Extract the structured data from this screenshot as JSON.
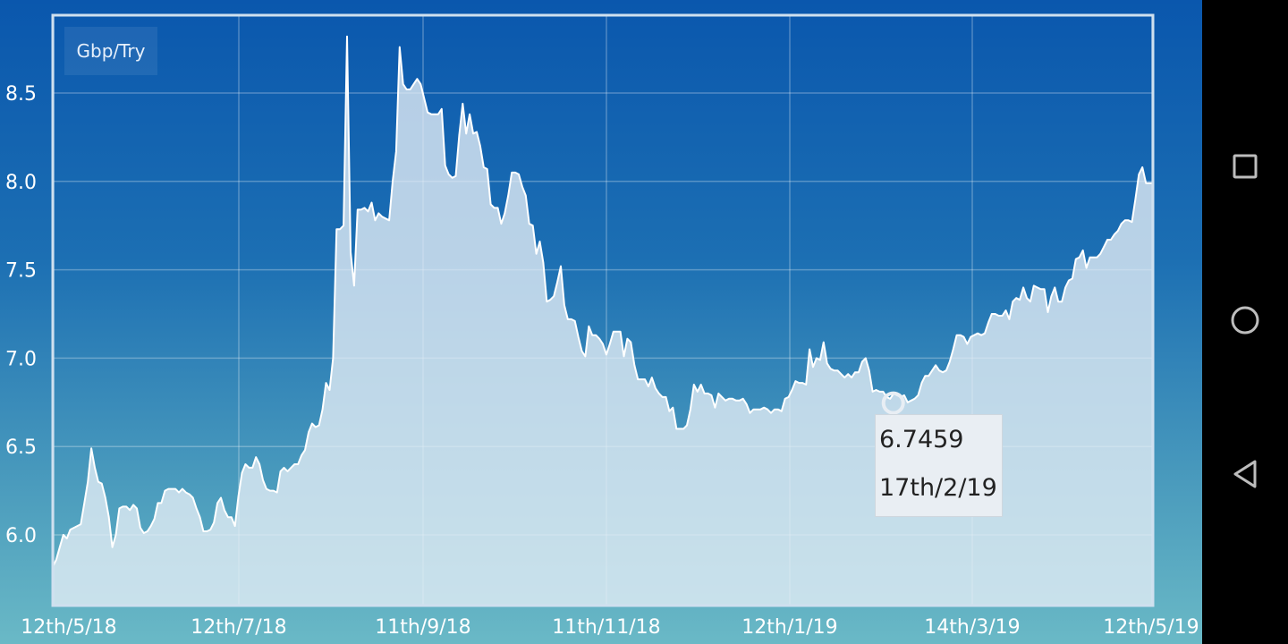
{
  "chart_data": {
    "type": "area",
    "title": "Gbp/Try",
    "xlabel": "",
    "ylabel": "",
    "y_ticks": [
      "6.0",
      "6.5",
      "7.0",
      "7.5",
      "8.0",
      "8.5"
    ],
    "ylim": [
      5.6,
      8.9
    ],
    "x_ticks": [
      "12th/5/18",
      "12th/7/18",
      "11th/9/18",
      "11th/11/18",
      "12th/1/19",
      "14th/3/19",
      "12th/5/19"
    ],
    "grid": true,
    "series": [
      {
        "name": "Gbp/Try",
        "values": [
          5.82,
          5.86,
          5.93,
          6.0,
          5.98,
          6.03,
          6.04,
          6.05,
          6.06,
          6.18,
          6.3,
          6.49,
          6.38,
          6.3,
          6.29,
          6.21,
          6.1,
          5.93,
          6.0,
          6.15,
          6.16,
          6.16,
          6.14,
          6.17,
          6.15,
          6.04,
          6.01,
          6.02,
          6.05,
          6.09,
          6.18,
          6.18,
          6.25,
          6.26,
          6.26,
          6.26,
          6.24,
          6.26,
          6.24,
          6.23,
          6.21,
          6.15,
          6.1,
          6.02,
          6.02,
          6.03,
          6.07,
          6.18,
          6.21,
          6.14,
          6.1,
          6.1,
          6.05,
          6.22,
          6.35,
          6.4,
          6.38,
          6.38,
          6.44,
          6.4,
          6.31,
          6.26,
          6.25,
          6.25,
          6.24,
          6.36,
          6.38,
          6.36,
          6.38,
          6.4,
          6.4,
          6.45,
          6.48,
          6.58,
          6.63,
          6.61,
          6.62,
          6.71,
          6.86,
          6.82,
          7.0,
          7.73,
          7.73,
          7.75,
          8.82,
          7.6,
          7.41,
          7.84,
          7.84,
          7.85,
          7.83,
          7.88,
          7.78,
          7.82,
          7.8,
          7.79,
          7.78,
          8.0,
          8.17,
          8.76,
          8.55,
          8.52,
          8.52,
          8.55,
          8.58,
          8.55,
          8.47,
          8.39,
          8.38,
          8.38,
          8.38,
          8.41,
          8.09,
          8.04,
          8.02,
          8.03,
          8.26,
          8.44,
          8.27,
          8.38,
          8.27,
          8.28,
          8.2,
          8.08,
          8.07,
          7.87,
          7.85,
          7.85,
          7.76,
          7.82,
          7.92,
          8.05,
          8.05,
          8.04,
          7.97,
          7.92,
          7.76,
          7.75,
          7.59,
          7.66,
          7.54,
          7.32,
          7.33,
          7.35,
          7.43,
          7.52,
          7.3,
          7.22,
          7.22,
          7.21,
          7.12,
          7.04,
          7.01,
          7.18,
          7.13,
          7.13,
          7.11,
          7.08,
          7.02,
          7.08,
          7.15,
          7.15,
          7.15,
          7.01,
          7.11,
          7.09,
          6.96,
          6.88,
          6.88,
          6.88,
          6.84,
          6.89,
          6.83,
          6.8,
          6.78,
          6.78,
          6.7,
          6.72,
          6.6,
          6.6,
          6.6,
          6.62,
          6.71,
          6.85,
          6.81,
          6.85,
          6.8,
          6.8,
          6.79,
          6.72,
          6.8,
          6.78,
          6.76,
          6.77,
          6.77,
          6.76,
          6.76,
          6.77,
          6.74,
          6.69,
          6.71,
          6.71,
          6.71,
          6.72,
          6.71,
          6.69,
          6.71,
          6.71,
          6.7,
          6.77,
          6.78,
          6.82,
          6.87,
          6.86,
          6.86,
          6.85,
          7.05,
          6.95,
          7.0,
          6.99,
          7.09,
          6.97,
          6.94,
          6.93,
          6.93,
          6.91,
          6.89,
          6.91,
          6.89,
          6.92,
          6.92,
          6.98,
          7.0,
          6.93,
          6.81,
          6.82,
          6.81,
          6.81,
          6.78,
          6.77,
          6.8,
          6.79,
          6.78,
          6.79,
          6.75,
          6.76,
          6.77,
          6.79,
          6.86,
          6.9,
          6.9,
          6.93,
          6.96,
          6.93,
          6.92,
          6.93,
          6.98,
          7.05,
          7.13,
          7.13,
          7.12,
          7.08,
          7.12,
          7.13,
          7.14,
          7.13,
          7.14,
          7.2,
          7.25,
          7.25,
          7.24,
          7.24,
          7.27,
          7.22,
          7.32,
          7.34,
          7.33,
          7.4,
          7.34,
          7.32,
          7.41,
          7.4,
          7.39,
          7.39,
          7.26,
          7.35,
          7.4,
          7.32,
          7.32,
          7.4,
          7.44,
          7.45,
          7.56,
          7.57,
          7.61,
          7.51,
          7.57,
          7.57,
          7.57,
          7.59,
          7.63,
          7.67,
          7.67,
          7.7,
          7.72,
          7.76,
          7.78,
          7.78,
          7.77,
          7.9,
          8.04,
          8.08,
          7.99,
          7.99,
          7.99
        ]
      }
    ],
    "tooltip": {
      "value": "6.7459",
      "date": "17th/2/19",
      "x_fraction": 0.764
    }
  },
  "colors": {
    "background_top": "#0a57ad",
    "background_bottom": "#6ab9c6",
    "line": "#ffffff",
    "area_fill": "#e6eef6"
  },
  "navbar": {
    "recents_icon": "square-icon",
    "home_icon": "circle-icon",
    "back_icon": "triangle-back-icon"
  }
}
